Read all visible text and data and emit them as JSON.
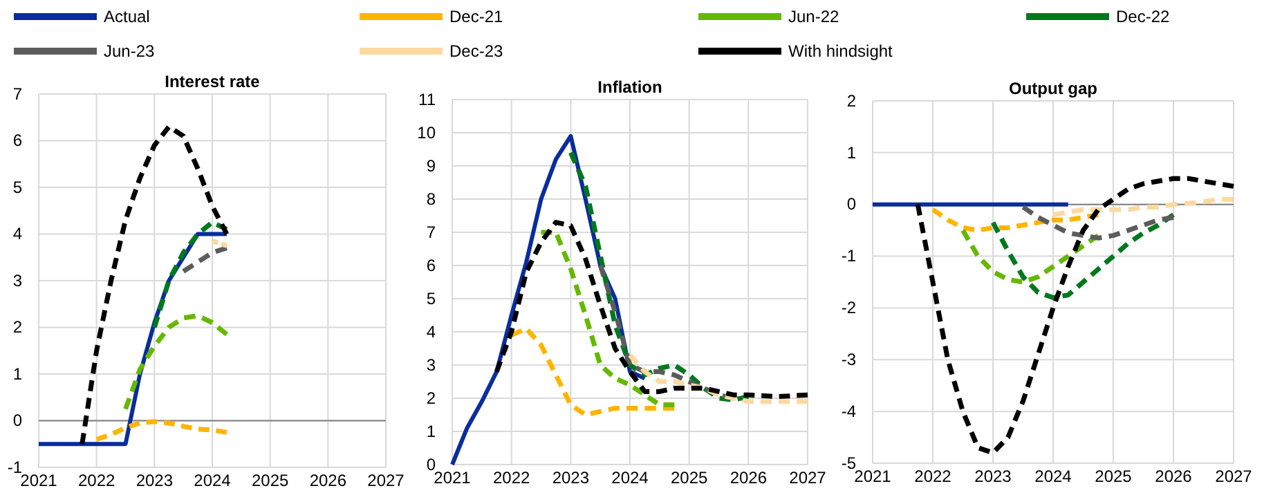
{
  "chart_data": [
    {
      "type": "line",
      "title": "Interest rate",
      "xlim": [
        2021,
        2027
      ],
      "xticks": [
        2021,
        2022,
        2023,
        2024,
        2025,
        2026,
        2027
      ],
      "ylim": [
        -1,
        7
      ],
      "yticks": [
        -1,
        0,
        1,
        2,
        3,
        4,
        5,
        6,
        7
      ],
      "grid": true,
      "legend": "top",
      "marker": "none",
      "series": [
        {
          "name": "Actual",
          "color": "#0a2d9c",
          "line_style": "solid",
          "x": [
            2021,
            2021.25,
            2021.5,
            2021.75,
            2022,
            2022.25,
            2022.5,
            2022.75,
            2023,
            2023.25,
            2023.5,
            2023.75,
            2024,
            2024.25
          ],
          "values": [
            -0.5,
            -0.5,
            -0.5,
            -0.5,
            -0.5,
            -0.5,
            -0.5,
            1.0,
            2.1,
            3.0,
            3.5,
            4.0,
            4.0,
            4.0
          ]
        },
        {
          "name": "Dec-21",
          "color": "#ffb400",
          "line_style": "dashed",
          "x": [
            2022,
            2022.25,
            2022.5,
            2022.75,
            2023,
            2023.25,
            2023.5,
            2023.75,
            2024,
            2024.25
          ],
          "values": [
            -0.4,
            -0.3,
            -0.15,
            -0.05,
            -0.02,
            -0.05,
            -0.12,
            -0.18,
            -0.2,
            -0.25
          ]
        },
        {
          "name": "Jun-22",
          "color": "#65b800",
          "line_style": "dashed",
          "x": [
            2022.5,
            2022.75,
            2023,
            2023.25,
            2023.5,
            2023.75,
            2024,
            2024.25
          ],
          "values": [
            0.25,
            1.1,
            1.6,
            2.0,
            2.2,
            2.25,
            2.1,
            1.85
          ]
        },
        {
          "name": "Dec-22",
          "color": "#00781e",
          "line_style": "dashed",
          "x": [
            2023,
            2023.25,
            2023.5,
            2023.75,
            2024,
            2024.25
          ],
          "values": [
            2.0,
            3.0,
            3.6,
            4.0,
            4.25,
            4.1
          ]
        },
        {
          "name": "Jun-23",
          "color": "#5c5c5c",
          "line_style": "dashed",
          "x": [
            2023.5,
            2023.75,
            2024,
            2024.25
          ],
          "values": [
            3.2,
            3.4,
            3.6,
            3.7
          ]
        },
        {
          "name": "Dec-23",
          "color": "#fcd9a0",
          "line_style": "dashed",
          "x": [
            2024,
            2024.25
          ],
          "values": [
            3.85,
            3.75
          ]
        },
        {
          "name": "With hindsight",
          "color": "#000000",
          "line_style": "dashed",
          "x": [
            2021.75,
            2022,
            2022.25,
            2022.5,
            2022.75,
            2023,
            2023.25,
            2023.5,
            2023.75,
            2024,
            2024.25
          ],
          "values": [
            -0.5,
            1.5,
            3.0,
            4.3,
            5.2,
            5.9,
            6.3,
            6.1,
            5.4,
            4.6,
            4.0
          ]
        }
      ]
    },
    {
      "type": "line",
      "title": "Inflation",
      "xlim": [
        2021,
        2027
      ],
      "xticks": [
        2021,
        2022,
        2023,
        2024,
        2025,
        2026,
        2027
      ],
      "ylim": [
        0,
        11
      ],
      "yticks": [
        0,
        1,
        2,
        3,
        4,
        5,
        6,
        7,
        8,
        9,
        10,
        11
      ],
      "grid": true,
      "marker": "none",
      "series": [
        {
          "color": "#0a2d9c",
          "line_style": "solid",
          "x": [
            2021,
            2021.25,
            2021.5,
            2021.75,
            2022,
            2022.25,
            2022.5,
            2022.75,
            2023,
            2023.25,
            2023.5,
            2023.75,
            2024,
            2024.25
          ],
          "values": [
            0,
            1.1,
            1.9,
            2.8,
            4.5,
            6.1,
            8.0,
            9.2,
            9.9,
            8.0,
            6.0,
            5.0,
            2.8,
            2.6
          ]
        },
        {
          "color": "#ffb400",
          "line_style": "dashed",
          "x": [
            2022,
            2022.25,
            2022.5,
            2022.75,
            2023,
            2023.25,
            2023.5,
            2023.75,
            2024,
            2024.25,
            2024.5,
            2024.75
          ],
          "values": [
            3.9,
            4.1,
            3.6,
            2.7,
            1.8,
            1.5,
            1.6,
            1.7,
            1.7,
            1.7,
            1.7,
            1.7
          ]
        },
        {
          "color": "#65b800",
          "line_style": "dashed",
          "x": [
            2022.5,
            2022.75,
            2023,
            2023.25,
            2023.5,
            2023.75,
            2024,
            2024.25,
            2024.5,
            2024.75
          ],
          "values": [
            7.0,
            7.0,
            5.9,
            4.5,
            3.0,
            2.6,
            2.4,
            2.1,
            1.8,
            1.8
          ]
        },
        {
          "color": "#00781e",
          "line_style": "dashed",
          "x": [
            2023,
            2023.25,
            2023.5,
            2023.75,
            2024,
            2024.25,
            2024.5,
            2024.75,
            2025,
            2025.25,
            2025.5,
            2025.75,
            2026
          ],
          "values": [
            9.4,
            8.4,
            6.3,
            4.2,
            3.0,
            2.7,
            2.9,
            3.0,
            2.7,
            2.3,
            2.0,
            1.95,
            2.05
          ]
        },
        {
          "color": "#5c5c5c",
          "line_style": "dashed",
          "x": [
            2023.5,
            2023.75,
            2024,
            2024.25,
            2024.5,
            2024.75,
            2025,
            2025.25,
            2025.5,
            2025.75
          ],
          "values": [
            6.0,
            4.6,
            3.0,
            2.8,
            2.8,
            2.7,
            2.5,
            2.3,
            2.1,
            2.0
          ]
        },
        {
          "color": "#fcd9a0",
          "line_style": "dashed",
          "x": [
            2024,
            2024.25,
            2024.5,
            2024.75,
            2025,
            2025.25,
            2025.5,
            2025.75,
            2026,
            2026.5,
            2027
          ],
          "values": [
            3.3,
            2.8,
            2.5,
            2.5,
            2.4,
            2.3,
            2.1,
            2.0,
            1.9,
            1.9,
            1.9
          ]
        },
        {
          "color": "#000000",
          "line_style": "dashed",
          "x": [
            2021.75,
            2022,
            2022.25,
            2022.5,
            2022.75,
            2023,
            2023.25,
            2023.5,
            2023.75,
            2024,
            2024.25,
            2024.5,
            2024.75,
            2025,
            2025.25,
            2025.5,
            2025.75,
            2026,
            2026.5,
            2027
          ],
          "values": [
            2.8,
            4.0,
            5.8,
            6.7,
            7.3,
            7.2,
            6.2,
            4.8,
            3.5,
            2.8,
            2.2,
            2.2,
            2.3,
            2.3,
            2.3,
            2.2,
            2.1,
            2.1,
            2.05,
            2.1
          ]
        }
      ]
    },
    {
      "type": "line",
      "title": "Output gap",
      "xlim": [
        2021,
        2027
      ],
      "xticks": [
        2021,
        2022,
        2023,
        2024,
        2025,
        2026,
        2027
      ],
      "ylim": [
        -5,
        2
      ],
      "yticks": [
        -5,
        -4,
        -3,
        -2,
        -1,
        0,
        1,
        2
      ],
      "grid": true,
      "marker": "none",
      "series": [
        {
          "color": "#0a2d9c",
          "line_style": "solid",
          "x": [
            2021,
            2021.5,
            2022,
            2022.5,
            2023,
            2023.5,
            2024,
            2024.25
          ],
          "values": [
            0,
            0,
            0,
            0,
            0,
            0,
            0,
            0
          ]
        },
        {
          "color": "#ffb400",
          "line_style": "dashed",
          "x": [
            2022,
            2022.25,
            2022.5,
            2022.75,
            2023,
            2023.25,
            2023.5,
            2023.75,
            2024,
            2024.25,
            2024.5,
            2024.75
          ],
          "values": [
            -0.1,
            -0.3,
            -0.45,
            -0.5,
            -0.45,
            -0.45,
            -0.4,
            -0.35,
            -0.3,
            -0.3,
            -0.25,
            -0.2
          ]
        },
        {
          "color": "#65b800",
          "line_style": "dashed",
          "x": [
            2022.5,
            2022.75,
            2023,
            2023.25,
            2023.5,
            2023.75,
            2024,
            2024.25,
            2024.5,
            2024.75
          ],
          "values": [
            -0.5,
            -1.0,
            -1.3,
            -1.45,
            -1.5,
            -1.4,
            -1.2,
            -1.0,
            -0.8,
            -0.6
          ]
        },
        {
          "color": "#00781e",
          "line_style": "dashed",
          "x": [
            2023,
            2023.25,
            2023.5,
            2023.75,
            2024,
            2024.25,
            2024.5,
            2024.75,
            2025,
            2025.25,
            2025.5,
            2025.75,
            2026
          ],
          "values": [
            -0.35,
            -0.9,
            -1.4,
            -1.7,
            -1.8,
            -1.75,
            -1.5,
            -1.25,
            -1.0,
            -0.75,
            -0.55,
            -0.4,
            -0.2
          ]
        },
        {
          "color": "#5c5c5c",
          "line_style": "dashed",
          "x": [
            2023.5,
            2023.75,
            2024,
            2024.25,
            2024.5,
            2024.75,
            2025,
            2025.25,
            2025.5,
            2025.75,
            2026
          ],
          "values": [
            -0.05,
            -0.25,
            -0.4,
            -0.55,
            -0.6,
            -0.65,
            -0.6,
            -0.5,
            -0.4,
            -0.3,
            -0.25
          ]
        },
        {
          "color": "#fcd9a0",
          "line_style": "dashed",
          "x": [
            2024,
            2024.25,
            2024.5,
            2024.75,
            2025,
            2025.25,
            2025.5,
            2025.75,
            2026,
            2026.25,
            2026.5,
            2026.75,
            2027
          ],
          "values": [
            -0.2,
            -0.15,
            -0.1,
            -0.1,
            -0.1,
            -0.1,
            -0.05,
            -0.05,
            0.0,
            0.02,
            0.05,
            0.1,
            0.1
          ]
        },
        {
          "color": "#000000",
          "line_style": "dashed",
          "x": [
            2021.75,
            2022,
            2022.25,
            2022.5,
            2022.75,
            2023,
            2023.25,
            2023.5,
            2023.75,
            2024,
            2024.25,
            2024.5,
            2024.75,
            2025,
            2025.25,
            2025.5,
            2025.75,
            2026,
            2026.25,
            2026.5,
            2026.75,
            2027
          ],
          "values": [
            0,
            -1.5,
            -3.0,
            -4.0,
            -4.7,
            -4.8,
            -4.5,
            -3.8,
            -2.9,
            -2.0,
            -1.2,
            -0.5,
            -0.1,
            0.1,
            0.3,
            0.4,
            0.45,
            0.5,
            0.5,
            0.45,
            0.4,
            0.35
          ]
        }
      ]
    }
  ]
}
